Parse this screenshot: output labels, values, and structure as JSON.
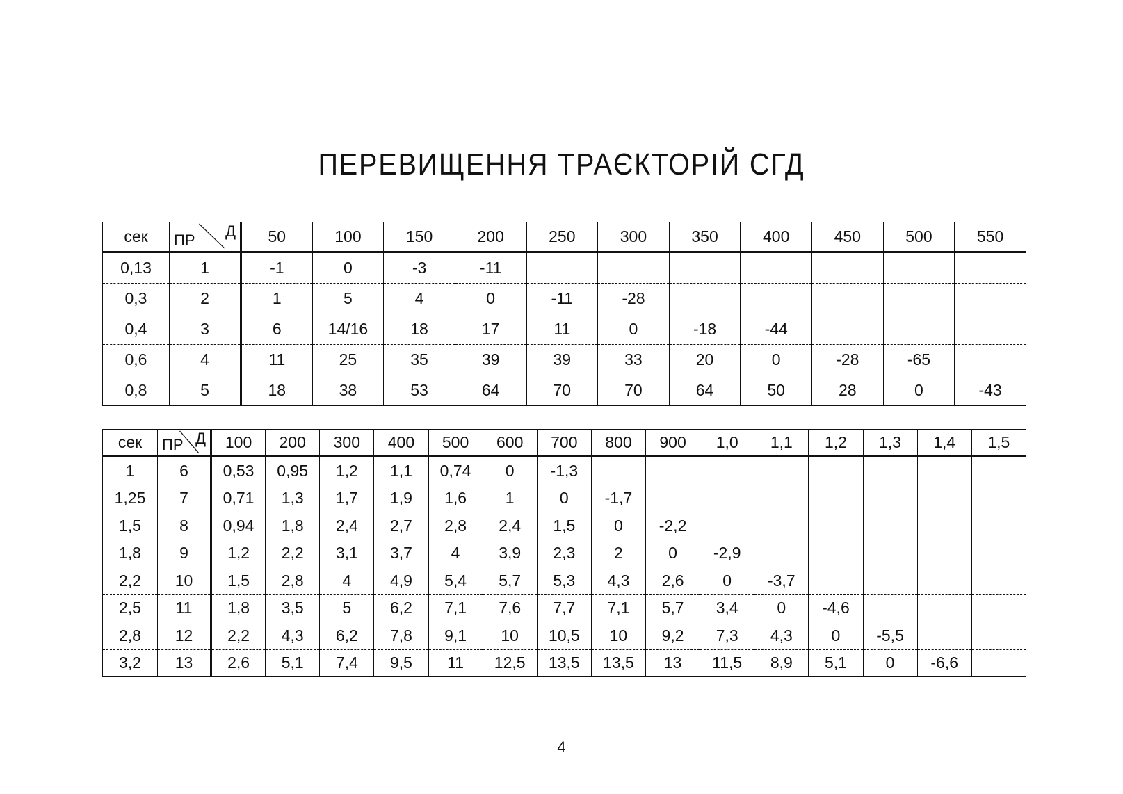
{
  "title": "ПЕРЕВИЩЕННЯ ТРАЄКТОРІЙ СГД",
  "page_number": "4",
  "table1": {
    "col_sec": "сек",
    "col_pr": "ПР",
    "col_d": "Д",
    "distances": [
      "50",
      "100",
      "150",
      "200",
      "250",
      "300",
      "350",
      "400",
      "450",
      "500",
      "550"
    ],
    "rows": [
      {
        "sec": "0,13",
        "pr": "1",
        "values": [
          "-1",
          "0",
          "-3",
          "-11",
          "",
          "",
          "",
          "",
          "",
          "",
          ""
        ]
      },
      {
        "sec": "0,3",
        "pr": "2",
        "values": [
          "1",
          "5",
          "4",
          "0",
          "-11",
          "-28",
          "",
          "",
          "",
          "",
          ""
        ]
      },
      {
        "sec": "0,4",
        "pr": "3",
        "values": [
          "6",
          "14/16",
          "18",
          "17",
          "11",
          "0",
          "-18",
          "-44",
          "",
          "",
          ""
        ]
      },
      {
        "sec": "0,6",
        "pr": "4",
        "values": [
          "11",
          "25",
          "35",
          "39",
          "39",
          "33",
          "20",
          "0",
          "-28",
          "-65",
          ""
        ]
      },
      {
        "sec": "0,8",
        "pr": "5",
        "values": [
          "18",
          "38",
          "53",
          "64",
          "70",
          "70",
          "64",
          "50",
          "28",
          "0",
          "-43"
        ]
      }
    ]
  },
  "table2": {
    "col_sec": "сек",
    "col_pr": "ПР",
    "col_d": "Д",
    "distances": [
      "100",
      "200",
      "300",
      "400",
      "500",
      "600",
      "700",
      "800",
      "900",
      "1,0",
      "1,1",
      "1,2",
      "1,3",
      "1,4",
      "1,5"
    ],
    "rows": [
      {
        "sec": "1",
        "pr": "6",
        "values": [
          "0,53",
          "0,95",
          "1,2",
          "1,1",
          "0,74",
          "0",
          "-1,3",
          "",
          "",
          "",
          "",
          "",
          "",
          "",
          ""
        ]
      },
      {
        "sec": "1,25",
        "pr": "7",
        "values": [
          "0,71",
          "1,3",
          "1,7",
          "1,9",
          "1,6",
          "1",
          "0",
          "-1,7",
          "",
          "",
          "",
          "",
          "",
          "",
          ""
        ]
      },
      {
        "sec": "1,5",
        "pr": "8",
        "values": [
          "0,94",
          "1,8",
          "2,4",
          "2,7",
          "2,8",
          "2,4",
          "1,5",
          "0",
          "-2,2",
          "",
          "",
          "",
          "",
          "",
          ""
        ]
      },
      {
        "sec": "1,8",
        "pr": "9",
        "values": [
          "1,2",
          "2,2",
          "3,1",
          "3,7",
          "4",
          "3,9",
          "2,3",
          "2",
          "0",
          "-2,9",
          "",
          "",
          "",
          "",
          ""
        ]
      },
      {
        "sec": "2,2",
        "pr": "10",
        "values": [
          "1,5",
          "2,8",
          "4",
          "4,9",
          "5,4",
          "5,7",
          "5,3",
          "4,3",
          "2,6",
          "0",
          "-3,7",
          "",
          "",
          "",
          ""
        ]
      },
      {
        "sec": "2,5",
        "pr": "11",
        "values": [
          "1,8",
          "3,5",
          "5",
          "6,2",
          "7,1",
          "7,6",
          "7,7",
          "7,1",
          "5,7",
          "3,4",
          "0",
          "-4,6",
          "",
          "",
          ""
        ]
      },
      {
        "sec": "2,8",
        "pr": "12",
        "values": [
          "2,2",
          "4,3",
          "6,2",
          "7,8",
          "9,1",
          "10",
          "10,5",
          "10",
          "9,2",
          "7,3",
          "4,3",
          "0",
          "-5,5",
          "",
          ""
        ]
      },
      {
        "sec": "3,2",
        "pr": "13",
        "values": [
          "2,6",
          "5,1",
          "7,4",
          "9,5",
          "11",
          "12,5",
          "13,5",
          "13,5",
          "13",
          "11,5",
          "8,9",
          "5,1",
          "0",
          "-6,6",
          ""
        ]
      }
    ]
  }
}
